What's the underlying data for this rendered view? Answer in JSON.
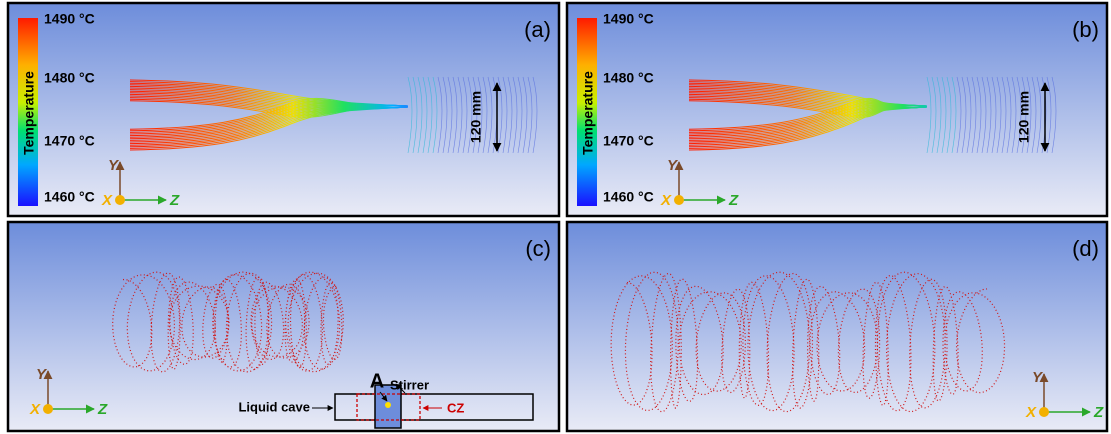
{
  "panels": [
    {
      "label": "(a)",
      "colorbar": {
        "title": "Temperature",
        "ticks": [
          "1490 °C",
          "1480 °C",
          "1470 °C",
          "1460 °C"
        ]
      },
      "dimension": "120 mm",
      "axes": {
        "x": "X",
        "y": "Y",
        "z": "Z"
      }
    },
    {
      "label": "(b)",
      "colorbar": {
        "title": "Temperature",
        "ticks": [
          "1490 °C",
          "1480 °C",
          "1470 °C",
          "1460 °C"
        ]
      },
      "dimension": "120 mm",
      "axes": {
        "x": "X",
        "y": "Y",
        "z": "Z"
      }
    },
    {
      "label": "(c)",
      "axes": {
        "x": "X",
        "y": "Y",
        "z": "Z"
      },
      "schematic": {
        "point": "A",
        "stirrer": "Stirrer",
        "liquid_cave": "Liquid cave",
        "zone": "CZ"
      }
    },
    {
      "label": "(d)",
      "axes": {
        "x": "X",
        "y": "Y",
        "z": "Z"
      }
    }
  ]
}
